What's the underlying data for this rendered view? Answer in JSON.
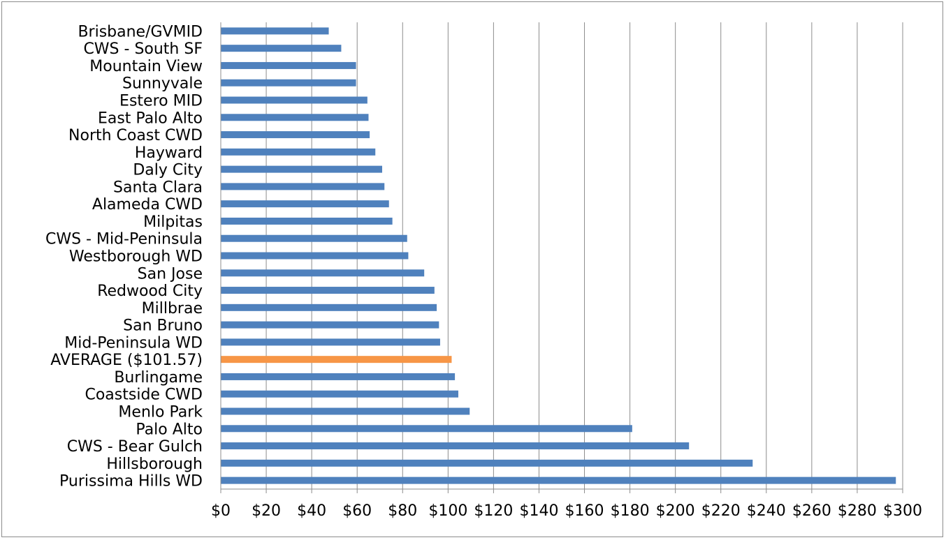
{
  "chart_data": {
    "type": "bar",
    "orientation": "horizontal",
    "title": "",
    "xlabel": "",
    "ylabel": "",
    "xlim": [
      0,
      300
    ],
    "x_ticks": [
      "$0",
      "$20",
      "$40",
      "$60",
      "$80",
      "$100",
      "$120",
      "$140",
      "$160",
      "$180",
      "$200",
      "$220",
      "$240",
      "$260",
      "$280",
      "$300"
    ],
    "grid": "vertical",
    "legend": "none",
    "categories": [
      "Brisbane/GVMID",
      "CWS - South SF",
      "Mountain View",
      "Sunnyvale",
      "Estero MID",
      "East Palo Alto",
      "North Coast CWD",
      "Hayward",
      "Daly City",
      "Santa Clara",
      "Alameda CWD",
      "Milpitas",
      "CWS - Mid-Peninsula",
      "Westborough WD",
      "San Jose",
      "Redwood City",
      "Millbrae",
      "San Bruno",
      "Mid-Peninsula WD",
      "AVERAGE ($101.57)",
      "Burlingame",
      "Coastside CWD",
      "Menlo Park",
      "Palo Alto",
      "CWS - Bear Gulch",
      "Hillsborough",
      "Purissima Hills WD"
    ],
    "values": [
      47.5,
      53,
      59.5,
      59.5,
      64.5,
      65,
      65.5,
      68,
      71,
      72,
      74,
      75.5,
      82,
      82.5,
      89.5,
      94,
      95,
      96,
      96.5,
      101.57,
      103,
      104.5,
      109.5,
      181,
      206,
      234,
      297
    ],
    "highlight_index": 19,
    "colors": {
      "bar": "#4f81bd",
      "highlight": "#f79646",
      "grid": "#8c8c8c"
    }
  }
}
